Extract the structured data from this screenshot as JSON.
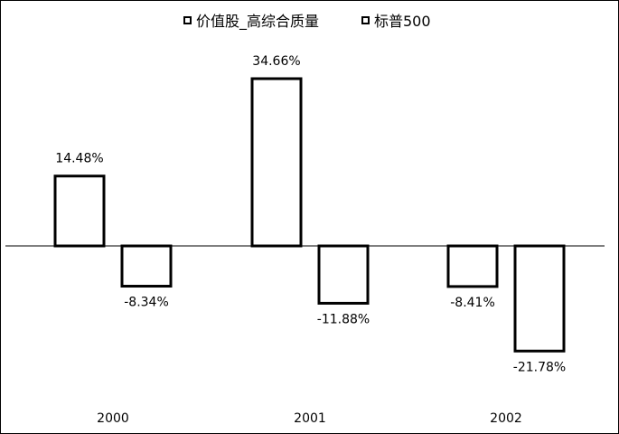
{
  "chart_data": {
    "type": "bar",
    "categories": [
      "2000",
      "2001",
      "2002"
    ],
    "series": [
      {
        "name": "价值股_高综合质量",
        "values": [
          14.48,
          34.66,
          -8.41
        ]
      },
      {
        "name": "标普500",
        "values": [
          -8.34,
          -11.88,
          -21.78
        ]
      }
    ],
    "data_labels": [
      [
        "14.48%",
        "34.66%",
        "-8.41%"
      ],
      [
        "-8.34%",
        "-11.88%",
        "-21.78%"
      ]
    ],
    "title": "",
    "xlabel": "",
    "ylabel": "",
    "ylim": [
      -28,
      42
    ],
    "grid": false,
    "legend": "top-center",
    "bar_fill": "#ffffff",
    "bar_stroke": "#000000",
    "axis_color": "#000000"
  }
}
